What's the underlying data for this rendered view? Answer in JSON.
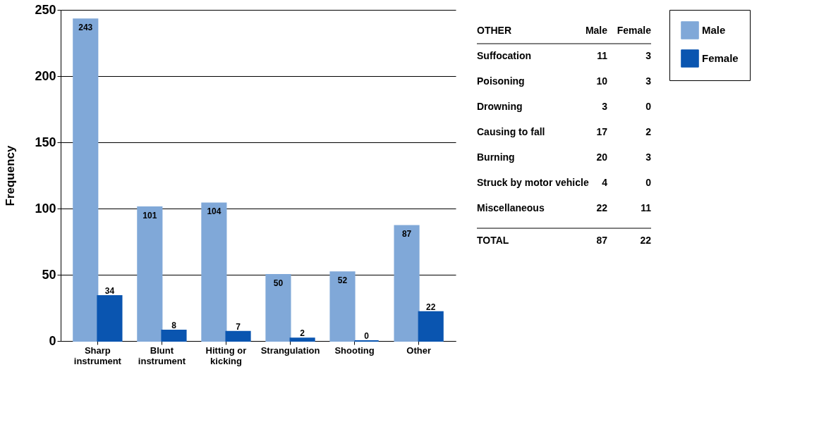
{
  "chart_data": [
    {
      "type": "bar",
      "ylabel": "Frequency",
      "categories": [
        "Sharp instrument",
        "Blunt instrument",
        "Hitting or kicking",
        "Strangulation",
        "Shooting",
        "Other"
      ],
      "series": [
        {
          "name": "Male",
          "color": "#80a8d8",
          "values": [
            243,
            101,
            104,
            50,
            52,
            87
          ]
        },
        {
          "name": "Female",
          "color": "#0a55b0",
          "values": [
            34,
            8,
            7,
            2,
            0,
            22
          ]
        }
      ],
      "ylim": [
        0,
        250
      ],
      "yticks": [
        0,
        50,
        100,
        150,
        200,
        250
      ],
      "grid": "y",
      "legend": "right",
      "data_labels": true
    },
    {
      "type": "other",
      "title": "OTHER",
      "data_labels": true,
      "categories": [
        "Suffocation",
        "Poisoning",
        "Drowning",
        "Causing to fall",
        "Burning",
        "Struck by motor vehicle",
        "Miscellaneous",
        "TOTAL"
      ],
      "series": [
        {
          "name": "Male",
          "values": [
            11,
            10,
            3,
            17,
            20,
            4,
            22,
            87
          ]
        },
        {
          "name": "Female",
          "values": [
            3,
            3,
            0,
            2,
            3,
            0,
            11,
            22
          ]
        }
      ]
    }
  ]
}
